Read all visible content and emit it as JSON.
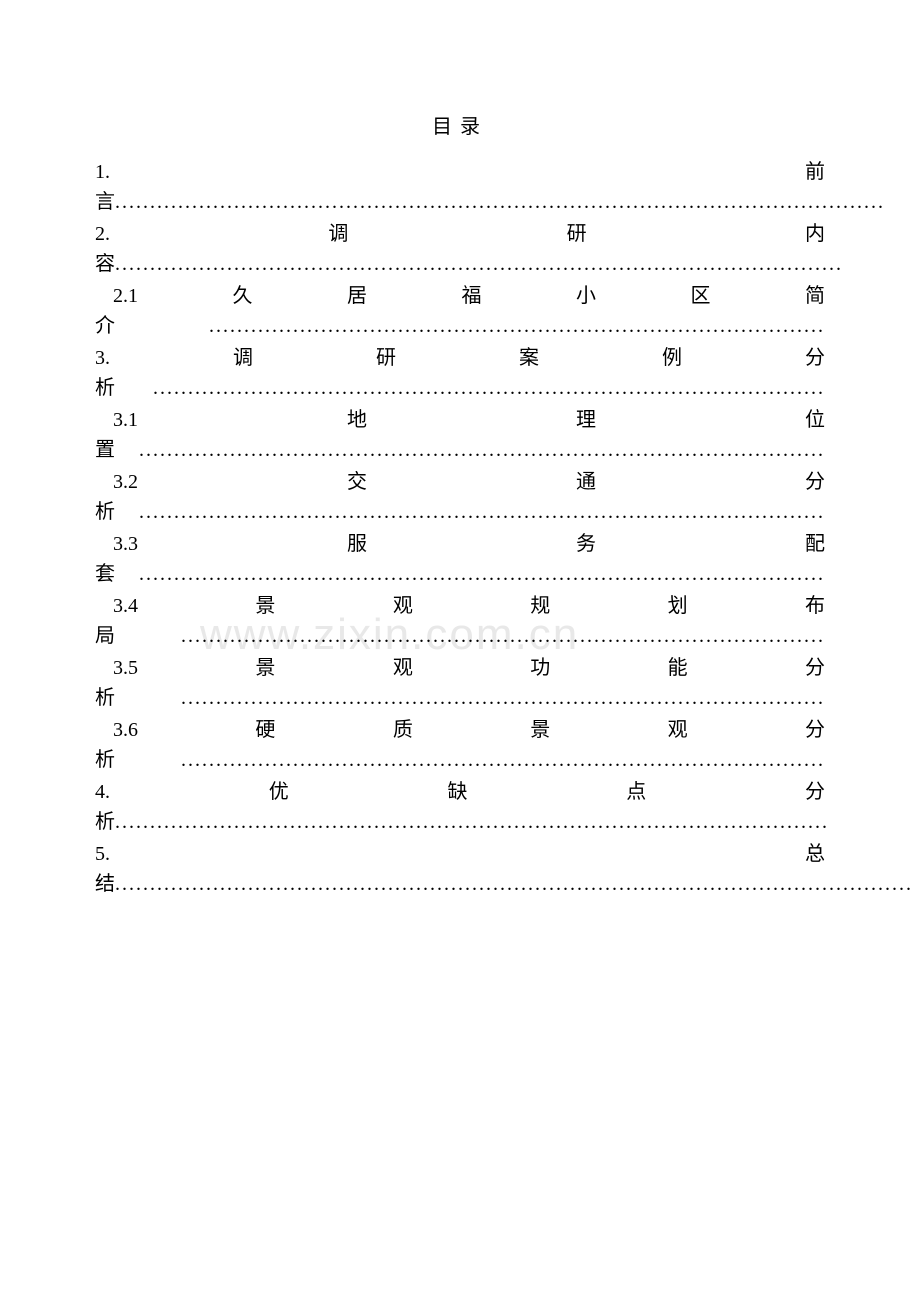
{
  "title": "目录",
  "watermark": "www.zixin.com.cn",
  "entries": [
    {
      "level": 1,
      "number": "1.",
      "text": "前言",
      "dots": ".............................................................................................................."
    },
    {
      "level": 1,
      "number": "2.",
      "text": "调研内容",
      "dots": "........................................................................................................"
    },
    {
      "level": 2,
      "number": "2.1",
      "text": "久居福小区简介",
      "dots": "........................................................................................"
    },
    {
      "level": 1,
      "number": "3.",
      "text": "调研案例分析",
      "dots": "................................................................................................"
    },
    {
      "level": 2,
      "number": "3.1",
      "text": "地理位置",
      "dots": ".................................................................................................."
    },
    {
      "level": 2,
      "number": "3.2",
      "text": "交通分析",
      "dots": ".................................................................................................."
    },
    {
      "level": 2,
      "number": "3.3",
      "text": "服务配套",
      "dots": ".................................................................................................."
    },
    {
      "level": 2,
      "number": "3.4",
      "text": "景观规划布局",
      "dots": "............................................................................................"
    },
    {
      "level": 2,
      "number": "3.5",
      "text": "景观功能分析",
      "dots": "............................................................................................"
    },
    {
      "level": 2,
      "number": "3.6",
      "text": "硬质景观分析",
      "dots": "............................................................................................"
    },
    {
      "level": 1,
      "number": "4.",
      "text": "优缺点分析",
      "dots": "......................................................................................................"
    },
    {
      "level": 1,
      "number": "5.",
      "text": "总结",
      "dots": ".................................................................................................................."
    }
  ]
}
